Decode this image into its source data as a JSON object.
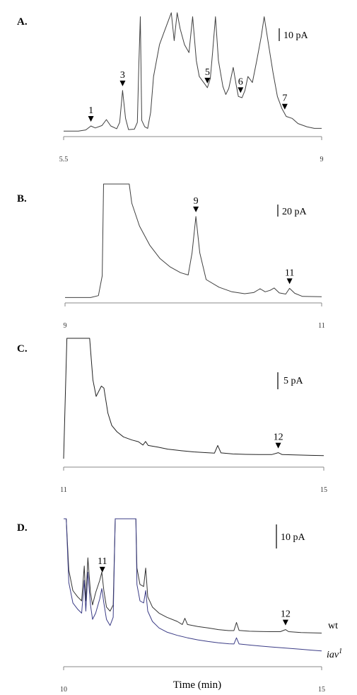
{
  "chart_data": [
    {
      "panel": "A.",
      "type": "line",
      "xlim": [
        5.5,
        9
      ],
      "xticks": [
        "5.5",
        "9"
      ],
      "scale_bar": "10 pA",
      "peaks": [
        {
          "label": "1",
          "x": 5.87
        },
        {
          "label": "3",
          "x": 6.3
        },
        {
          "label": "5",
          "x": 7.45
        },
        {
          "label": "6",
          "x": 7.9
        },
        {
          "label": "7",
          "x": 8.5
        }
      ],
      "series": [
        {
          "color": "#404040",
          "points": [
            [
              5.5,
              0.3
            ],
            [
              5.7,
              0.3
            ],
            [
              5.8,
              0.6
            ],
            [
              5.87,
              1.6
            ],
            [
              5.93,
              1.1
            ],
            [
              6.02,
              1.7
            ],
            [
              6.08,
              3.2
            ],
            [
              6.14,
              1.6
            ],
            [
              6.22,
              0.9
            ],
            [
              6.26,
              2.5
            ],
            [
              6.3,
              10.5
            ],
            [
              6.34,
              3.5
            ],
            [
              6.38,
              0.7
            ],
            [
              6.46,
              0.8
            ],
            [
              6.5,
              2.5
            ],
            [
              6.52,
              17
            ],
            [
              6.54,
              29
            ],
            [
              6.56,
              3.0
            ],
            [
              6.6,
              1.4
            ],
            [
              6.64,
              1.0
            ],
            [
              6.68,
              5.0
            ],
            [
              6.72,
              14
            ],
            [
              6.8,
              22
            ],
            [
              6.86,
              25
            ],
            [
              6.92,
              28
            ],
            [
              6.96,
              30
            ],
            [
              7.0,
              23
            ],
            [
              7.04,
              30
            ],
            [
              7.08,
              26
            ],
            [
              7.14,
              22
            ],
            [
              7.2,
              20
            ],
            [
              7.25,
              29
            ],
            [
              7.3,
              18
            ],
            [
              7.34,
              14
            ],
            [
              7.4,
              12.5
            ],
            [
              7.42,
              12.0
            ],
            [
              7.45,
              11.2
            ],
            [
              7.49,
              13.5
            ],
            [
              7.52,
              20
            ],
            [
              7.56,
              29
            ],
            [
              7.6,
              18
            ],
            [
              7.66,
              11.5
            ],
            [
              7.7,
              9.5
            ],
            [
              7.74,
              11
            ],
            [
              7.8,
              16.3
            ],
            [
              7.84,
              12
            ],
            [
              7.87,
              9.0
            ],
            [
              7.92,
              8.7
            ],
            [
              7.96,
              10.5
            ],
            [
              8.0,
              14
            ],
            [
              8.06,
              12.5
            ],
            [
              8.12,
              18
            ],
            [
              8.18,
              24
            ],
            [
              8.22,
              29
            ],
            [
              8.28,
              22
            ],
            [
              8.34,
              15
            ],
            [
              8.4,
              9
            ],
            [
              8.46,
              6
            ],
            [
              8.52,
              4.0
            ],
            [
              8.6,
              3.5
            ],
            [
              8.68,
              2.2
            ],
            [
              8.8,
              1.4
            ],
            [
              8.9,
              1.0
            ],
            [
              9.0,
              1.0
            ]
          ]
        }
      ]
    },
    {
      "panel": "B.",
      "type": "line",
      "xlim": [
        9,
        11
      ],
      "xticks": [
        "9",
        "11"
      ],
      "scale_bar": "20 pA",
      "peaks": [
        {
          "label": "9",
          "x": 10.02
        },
        {
          "label": "11",
          "x": 10.75
        }
      ],
      "series": [
        {
          "color": "#404040",
          "points": [
            [
              9.0,
              0.3
            ],
            [
              9.2,
              0.3
            ],
            [
              9.26,
              0.8
            ],
            [
              9.29,
              6
            ],
            [
              9.3,
              30
            ],
            [
              9.5,
              30
            ],
            [
              9.52,
              25
            ],
            [
              9.58,
              19
            ],
            [
              9.66,
              14
            ],
            [
              9.74,
              10.5
            ],
            [
              9.82,
              8.3
            ],
            [
              9.9,
              6.8
            ],
            [
              9.96,
              6.2
            ],
            [
              9.99,
              12
            ],
            [
              10.02,
              21.5
            ],
            [
              10.05,
              12
            ],
            [
              10.1,
              5
            ],
            [
              10.2,
              3.0
            ],
            [
              10.3,
              1.8
            ],
            [
              10.4,
              1.3
            ],
            [
              10.47,
              1.6
            ],
            [
              10.52,
              2.6
            ],
            [
              10.56,
              1.8
            ],
            [
              10.6,
              2.2
            ],
            [
              10.63,
              2.8
            ],
            [
              10.67,
              1.5
            ],
            [
              10.72,
              1.2
            ],
            [
              10.75,
              2.7
            ],
            [
              10.79,
              1.4
            ],
            [
              10.85,
              0.6
            ],
            [
              11.0,
              0.5
            ]
          ]
        }
      ]
    },
    {
      "panel": "C.",
      "type": "line",
      "xlim": [
        11,
        15
      ],
      "xticks": [
        "11",
        "15"
      ],
      "scale_bar": "5 pA",
      "peaks": [
        {
          "label": "12",
          "x": 14.3
        }
      ],
      "series": [
        {
          "color": "#222222",
          "points": [
            [
              11.0,
              2
            ],
            [
              11.05,
              60
            ],
            [
              11.12,
              60
            ],
            [
              11.2,
              60
            ],
            [
              11.28,
              60
            ],
            [
              11.4,
              60
            ],
            [
              11.45,
              40
            ],
            [
              11.5,
              32
            ],
            [
              11.58,
              37
            ],
            [
              11.62,
              36
            ],
            [
              11.68,
              24
            ],
            [
              11.74,
              18
            ],
            [
              11.82,
              15
            ],
            [
              11.92,
              12.5
            ],
            [
              12.05,
              11
            ],
            [
              12.15,
              10.2
            ],
            [
              12.22,
              8.6
            ],
            [
              12.26,
              10.3
            ],
            [
              12.3,
              8.4
            ],
            [
              12.45,
              7.6
            ],
            [
              12.6,
              6.6
            ],
            [
              12.8,
              5.9
            ],
            [
              13.0,
              5.3
            ],
            [
              13.2,
              4.9
            ],
            [
              13.32,
              4.7
            ],
            [
              13.37,
              8.4
            ],
            [
              13.42,
              4.8
            ],
            [
              13.6,
              4.3
            ],
            [
              13.8,
              4.1
            ],
            [
              14.0,
              4.0
            ],
            [
              14.2,
              4.0
            ],
            [
              14.3,
              4.9
            ],
            [
              14.36,
              4.0
            ],
            [
              14.6,
              3.8
            ],
            [
              14.8,
              3.6
            ],
            [
              15.0,
              3.5
            ]
          ]
        }
      ]
    },
    {
      "panel": "D.",
      "type": "line",
      "xlim": [
        10,
        15
      ],
      "xticks": [
        "10",
        "15"
      ],
      "xlabel": "Time (min)",
      "scale_bar": "10 pA",
      "peaks": [
        {
          "label": "11",
          "x": 10.75
        },
        {
          "label": "12",
          "x": 14.3
        }
      ],
      "series": [
        {
          "name": "wt",
          "color": "#333333",
          "points": [
            [
              10.0,
              70
            ],
            [
              10.05,
              70
            ],
            [
              10.1,
              45
            ],
            [
              10.18,
              35
            ],
            [
              10.27,
              32
            ],
            [
              10.35,
              30
            ],
            [
              10.4,
              47
            ],
            [
              10.43,
              30
            ],
            [
              10.47,
              51
            ],
            [
              10.52,
              34
            ],
            [
              10.56,
              28
            ],
            [
              10.62,
              34
            ],
            [
              10.7,
              40
            ],
            [
              10.74,
              44
            ],
            [
              10.78,
              35
            ],
            [
              10.83,
              27
            ],
            [
              10.9,
              25
            ],
            [
              10.96,
              28
            ],
            [
              11.0,
              70
            ],
            [
              11.4,
              70
            ],
            [
              11.42,
              46
            ],
            [
              11.48,
              38
            ],
            [
              11.55,
              37
            ],
            [
              11.59,
              46
            ],
            [
              11.63,
              32
            ],
            [
              11.72,
              27
            ],
            [
              11.85,
              24
            ],
            [
              12.0,
              22
            ],
            [
              12.2,
              20
            ],
            [
              12.3,
              18.5
            ],
            [
              12.35,
              21.5
            ],
            [
              12.4,
              18.5
            ],
            [
              12.6,
              17.5
            ],
            [
              12.8,
              16.8
            ],
            [
              13.0,
              16
            ],
            [
              13.2,
              15.5
            ],
            [
              13.3,
              15.5
            ],
            [
              13.35,
              19.5
            ],
            [
              13.4,
              15.6
            ],
            [
              13.6,
              15.2
            ],
            [
              13.8,
              15.1
            ],
            [
              14.0,
              15
            ],
            [
              14.2,
              15
            ],
            [
              14.3,
              16
            ],
            [
              14.36,
              15
            ],
            [
              14.6,
              14.6
            ],
            [
              15.0,
              14.3
            ]
          ]
        },
        {
          "name": "iav1",
          "color": "#3b3c86",
          "points": [
            [
              10.0,
              70
            ],
            [
              10.05,
              70
            ],
            [
              10.1,
              39
            ],
            [
              10.18,
              29
            ],
            [
              10.27,
              26
            ],
            [
              10.35,
              24
            ],
            [
              10.4,
              40
            ],
            [
              10.43,
              25
            ],
            [
              10.47,
              44
            ],
            [
              10.52,
              28
            ],
            [
              10.56,
              21
            ],
            [
              10.62,
              24
            ],
            [
              10.7,
              31
            ],
            [
              10.74,
              36
            ],
            [
              10.78,
              29
            ],
            [
              10.83,
              21
            ],
            [
              10.9,
              18
            ],
            [
              10.96,
              22
            ],
            [
              11.0,
              70
            ],
            [
              11.4,
              70
            ],
            [
              11.42,
              38
            ],
            [
              11.48,
              30
            ],
            [
              11.55,
              29
            ],
            [
              11.59,
              35
            ],
            [
              11.63,
              25
            ],
            [
              11.72,
              20
            ],
            [
              11.85,
              16.8
            ],
            [
              12.0,
              14.8
            ],
            [
              12.2,
              13.2
            ],
            [
              12.4,
              12
            ],
            [
              12.6,
              11
            ],
            [
              12.8,
              10.2
            ],
            [
              13.0,
              9.6
            ],
            [
              13.2,
              9.1
            ],
            [
              13.3,
              9.0
            ],
            [
              13.35,
              12
            ],
            [
              13.4,
              9.0
            ],
            [
              13.6,
              8.5
            ],
            [
              13.8,
              8.0
            ],
            [
              14.0,
              7.6
            ],
            [
              14.2,
              7.2
            ],
            [
              14.4,
              6.8
            ],
            [
              14.6,
              6.4
            ],
            [
              14.8,
              6.0
            ],
            [
              15.0,
              5.6
            ]
          ]
        }
      ]
    }
  ],
  "trace_labels": {
    "wt": "wt",
    "iav_base": "iav",
    "iav_sup": "1"
  }
}
